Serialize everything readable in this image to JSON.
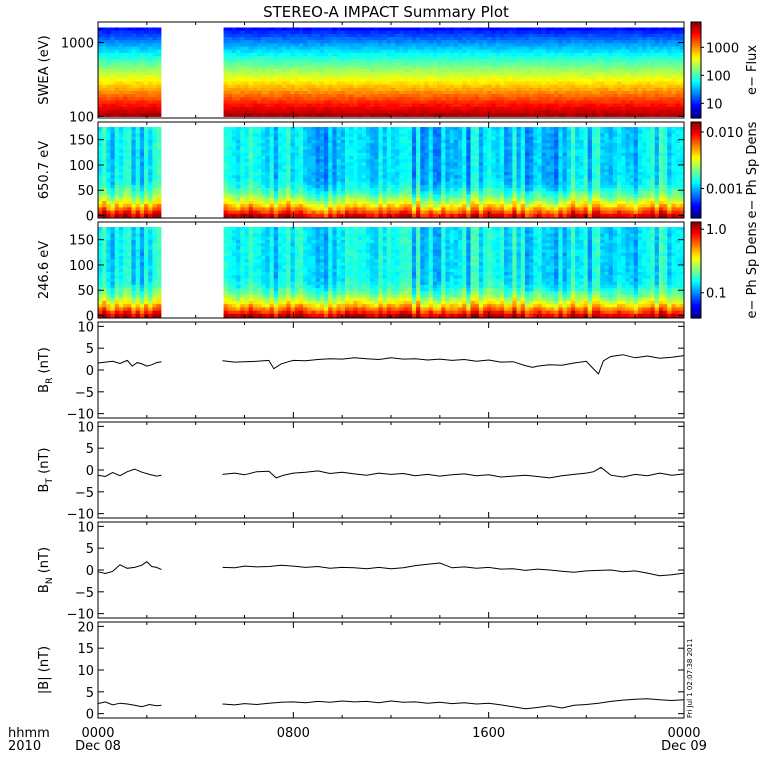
{
  "title": "STEREO-A IMPACT Summary Plot",
  "stamp": "Fri Jul 1 02:07:38 2011",
  "time_axis": {
    "hours_total": 24,
    "ticks": [
      {
        "hour": 0,
        "label": "0000",
        "sublabel": "Dec 08"
      },
      {
        "hour": 8,
        "label": "0800",
        "sublabel": ""
      },
      {
        "hour": 16,
        "label": "1600",
        "sublabel": ""
      },
      {
        "hour": 24,
        "label": "0000",
        "sublabel": "Dec 09"
      }
    ],
    "left_label_top": "hhmm",
    "left_label_bottom": "2010",
    "data_gap_hours": [
      2.6,
      5.1
    ]
  },
  "chart_data": [
    {
      "type": "heatmap",
      "id": "swea",
      "ylabel": "SWEA (eV)",
      "yscale": "log",
      "ylim": [
        95,
        1900
      ],
      "yticks": [
        {
          "v": 100,
          "label": "100"
        },
        {
          "v": 1000,
          "label": "1000"
        }
      ],
      "colorbar": {
        "label": "e− Flux",
        "scale": "log",
        "range": [
          3,
          8000
        ],
        "ticks": [
          {
            "v": 10,
            "label": "10"
          },
          {
            "v": 100,
            "label": "100"
          },
          {
            "v": 1000,
            "label": "1000"
          }
        ]
      },
      "profile_log_top": 3.35,
      "profile_log_bottom": 1.45
    },
    {
      "type": "heatmap",
      "id": "pad650",
      "ylabel": "650.7 eV",
      "yscale": "linear",
      "ylim": [
        -5,
        185
      ],
      "yticks": [
        {
          "v": 0,
          "label": "0"
        },
        {
          "v": 50,
          "label": "50"
        },
        {
          "v": 100,
          "label": "100"
        },
        {
          "v": 150,
          "label": "150"
        }
      ],
      "colorbar": {
        "label": "e− Ph Sp Dens",
        "scale": "log",
        "range": [
          0.0003,
          0.015
        ],
        "ticks": [
          {
            "v": 0.001,
            "label": "0.001"
          },
          {
            "v": 0.01,
            "label": "0.010"
          }
        ]
      }
    },
    {
      "type": "heatmap",
      "id": "pad246",
      "ylabel": "246.6 eV",
      "yscale": "linear",
      "ylim": [
        -5,
        185
      ],
      "yticks": [
        {
          "v": 0,
          "label": "0"
        },
        {
          "v": 50,
          "label": "50"
        },
        {
          "v": 100,
          "label": "100"
        },
        {
          "v": 150,
          "label": "150"
        }
      ],
      "colorbar": {
        "label": "e− Ph Sp Dens",
        "scale": "log",
        "range": [
          0.04,
          1.3
        ],
        "ticks": [
          {
            "v": 0.1,
            "label": "0.1"
          },
          {
            "v": 1.0,
            "label": "1.0"
          }
        ]
      }
    },
    {
      "type": "line",
      "id": "br",
      "ylabel_main": "B",
      "ylabel_sub": "R",
      "ylabel_unit": "(nT)",
      "ylim": [
        -11,
        11
      ],
      "yticks": [
        {
          "v": -10,
          "label": "−10"
        },
        {
          "v": -5,
          "label": "−5"
        },
        {
          "v": 0,
          "label": "0"
        },
        {
          "v": 5,
          "label": "5"
        },
        {
          "v": 10,
          "label": "10"
        }
      ],
      "series": [
        {
          "x": [
            0,
            0.3,
            0.6,
            0.9,
            1.2,
            1.4,
            1.6,
            1.8,
            2.0,
            2.2,
            2.4,
            2.6,
            5.1,
            5.6,
            6.0,
            6.5,
            7.0,
            7.2,
            7.5,
            7.8,
            8.0,
            8.5,
            9.0,
            9.5,
            10.0,
            10.5,
            11.0,
            11.5,
            12.0,
            12.5,
            13.0,
            13.5,
            14.0,
            14.5,
            15.0,
            15.5,
            16.0,
            16.5,
            17.0,
            17.5,
            17.8,
            18.0,
            18.5,
            19.0,
            19.5,
            20.0,
            20.3,
            20.5,
            20.7,
            21.0,
            21.5,
            22.0,
            22.5,
            23.0,
            23.5,
            24.0
          ],
          "y": [
            1.6,
            1.8,
            2.0,
            1.5,
            2.2,
            0.9,
            1.7,
            1.4,
            0.9,
            1.2,
            1.7,
            1.9,
            2.1,
            1.8,
            1.9,
            2.0,
            2.2,
            0.3,
            1.4,
            1.9,
            2.2,
            2.1,
            2.4,
            2.6,
            2.5,
            2.8,
            2.6,
            2.4,
            2.8,
            2.5,
            2.6,
            2.3,
            2.5,
            2.2,
            2.4,
            2.0,
            2.3,
            1.8,
            1.9,
            1.0,
            0.6,
            0.9,
            1.2,
            1.1,
            1.6,
            2.0,
            0.2,
            -0.9,
            2.1,
            3.1,
            3.5,
            2.8,
            3.2,
            2.7,
            2.9,
            3.3
          ]
        }
      ]
    },
    {
      "type": "line",
      "id": "bt",
      "ylabel_main": "B",
      "ylabel_sub": "T",
      "ylabel_unit": "(nT)",
      "ylim": [
        -11,
        11
      ],
      "yticks": [
        {
          "v": -10,
          "label": "−10"
        },
        {
          "v": -5,
          "label": "−5"
        },
        {
          "v": 0,
          "label": "0"
        },
        {
          "v": 5,
          "label": "5"
        },
        {
          "v": 10,
          "label": "10"
        }
      ],
      "series": [
        {
          "x": [
            0,
            0.3,
            0.6,
            0.9,
            1.2,
            1.5,
            1.8,
            2.1,
            2.4,
            2.6,
            5.1,
            5.6,
            6.0,
            6.5,
            7.0,
            7.3,
            7.6,
            8.0,
            8.5,
            9.0,
            9.5,
            10.0,
            10.5,
            11.0,
            11.5,
            12.0,
            12.5,
            13.0,
            13.5,
            14.0,
            14.5,
            15.0,
            15.5,
            16.0,
            16.5,
            17.0,
            17.5,
            18.0,
            18.5,
            19.0,
            19.5,
            20.0,
            20.3,
            20.6,
            21.0,
            21.5,
            22.0,
            22.5,
            23.0,
            23.5,
            24.0
          ],
          "y": [
            -1.2,
            -1.5,
            -0.6,
            -1.3,
            -0.4,
            0.2,
            -0.5,
            -1.0,
            -1.4,
            -1.2,
            -1.0,
            -0.7,
            -1.1,
            -0.4,
            -0.3,
            -1.8,
            -1.2,
            -0.7,
            -0.5,
            -0.2,
            -0.8,
            -0.5,
            -0.9,
            -1.2,
            -0.7,
            -1.0,
            -0.8,
            -1.3,
            -1.0,
            -1.4,
            -1.1,
            -0.9,
            -1.3,
            -1.1,
            -1.6,
            -1.4,
            -1.2,
            -1.5,
            -1.8,
            -1.3,
            -1.0,
            -0.7,
            -0.4,
            0.6,
            -1.2,
            -1.6,
            -1.0,
            -1.3,
            -0.7,
            -1.2,
            -0.9
          ]
        }
      ]
    },
    {
      "type": "line",
      "id": "bn",
      "ylabel_main": "B",
      "ylabel_sub": "N",
      "ylabel_unit": "(nT)",
      "ylim": [
        -11,
        11
      ],
      "yticks": [
        {
          "v": -10,
          "label": "−10"
        },
        {
          "v": -5,
          "label": "−5"
        },
        {
          "v": 0,
          "label": "0"
        },
        {
          "v": 5,
          "label": "5"
        },
        {
          "v": 10,
          "label": "10"
        }
      ],
      "series": [
        {
          "x": [
            0,
            0.3,
            0.6,
            0.9,
            1.2,
            1.5,
            1.8,
            2.0,
            2.2,
            2.4,
            2.6,
            5.1,
            5.6,
            6.0,
            6.5,
            7.0,
            7.5,
            8.0,
            8.5,
            9.0,
            9.5,
            10.0,
            10.5,
            11.0,
            11.5,
            12.0,
            12.5,
            13.0,
            13.5,
            14.0,
            14.5,
            15.0,
            15.5,
            16.0,
            16.5,
            17.0,
            17.5,
            18.0,
            18.5,
            19.0,
            19.5,
            20.0,
            20.5,
            21.0,
            21.5,
            22.0,
            22.5,
            23.0,
            23.5,
            24.0
          ],
          "y": [
            -0.4,
            -0.8,
            -0.3,
            1.2,
            0.4,
            0.6,
            1.1,
            1.9,
            0.8,
            0.6,
            0.1,
            0.6,
            0.5,
            0.9,
            0.7,
            0.8,
            1.1,
            0.9,
            0.6,
            0.8,
            0.4,
            0.6,
            0.5,
            0.3,
            0.6,
            0.3,
            0.5,
            1.0,
            1.3,
            1.6,
            0.5,
            0.7,
            0.4,
            0.6,
            0.2,
            0.3,
            -0.1,
            0.2,
            0.0,
            -0.3,
            -0.5,
            -0.2,
            -0.1,
            0.0,
            -0.4,
            -0.2,
            -0.7,
            -1.3,
            -1.1,
            -0.7
          ]
        }
      ]
    },
    {
      "type": "line",
      "id": "bmag",
      "ylabel_main": "|B|",
      "ylabel_sub": "",
      "ylabel_unit": "(nT)",
      "ylim": [
        -1,
        21
      ],
      "yticks": [
        {
          "v": 0,
          "label": "0"
        },
        {
          "v": 5,
          "label": "5"
        },
        {
          "v": 10,
          "label": "10"
        },
        {
          "v": 15,
          "label": "15"
        },
        {
          "v": 20,
          "label": "20"
        }
      ],
      "series": [
        {
          "x": [
            0,
            0.3,
            0.6,
            0.9,
            1.2,
            1.5,
            1.8,
            2.1,
            2.4,
            2.6,
            5.1,
            5.6,
            6.0,
            6.5,
            7.0,
            7.5,
            8.0,
            8.5,
            9.0,
            9.5,
            10.0,
            10.5,
            11.0,
            11.5,
            12.0,
            12.5,
            13.0,
            13.5,
            14.0,
            14.5,
            15.0,
            15.5,
            16.0,
            16.5,
            17.0,
            17.5,
            18.0,
            18.5,
            19.0,
            19.5,
            20.0,
            20.5,
            21.0,
            21.5,
            22.0,
            22.5,
            23.0,
            23.5,
            24.0
          ],
          "y": [
            2.3,
            2.7,
            2.0,
            2.4,
            2.2,
            1.9,
            1.6,
            2.1,
            1.8,
            1.9,
            2.2,
            2.0,
            2.3,
            2.1,
            2.4,
            2.6,
            2.7,
            2.5,
            2.8,
            2.6,
            2.9,
            2.7,
            2.8,
            2.5,
            2.9,
            2.6,
            2.7,
            2.4,
            2.6,
            2.3,
            2.5,
            2.2,
            2.4,
            2.0,
            1.6,
            1.1,
            1.4,
            1.8,
            1.3,
            1.9,
            2.1,
            2.4,
            2.8,
            3.1,
            3.3,
            3.4,
            3.2,
            3.0,
            3.2
          ]
        }
      ]
    }
  ]
}
